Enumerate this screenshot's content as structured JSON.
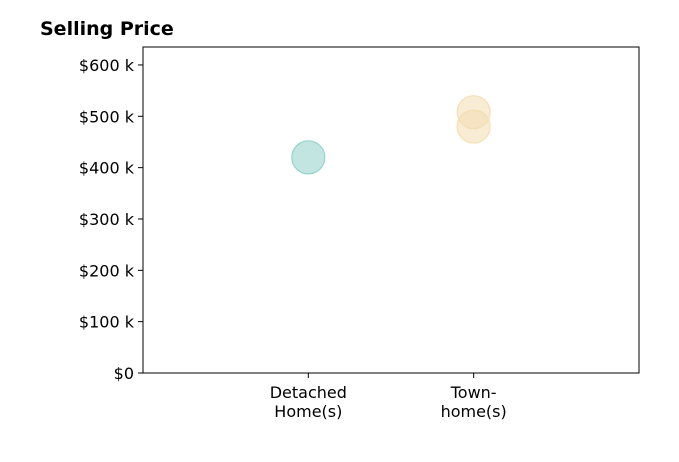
{
  "chart_data": {
    "type": "scatter",
    "title": "Selling Price",
    "xlabel": "",
    "ylabel": "",
    "categories": [
      [
        "Detached",
        "Home(s)"
      ],
      [
        "Town-",
        "home(s)"
      ]
    ],
    "ylim": [
      0,
      635000
    ],
    "yticks": [
      0,
      100000,
      200000,
      300000,
      400000,
      500000,
      600000
    ],
    "ytick_labels": [
      "$0",
      "$100 k",
      "$200 k",
      "$300 k",
      "$400 k",
      "$500 k",
      "$600 k"
    ],
    "grid": false,
    "points": [
      {
        "category": 0,
        "value": 420000,
        "color": "#8fd0c8"
      },
      {
        "category": 1,
        "value": 508000,
        "color": "#f3ddb0"
      },
      {
        "category": 1,
        "value": 480000,
        "color": "#f3ddb0"
      }
    ]
  }
}
